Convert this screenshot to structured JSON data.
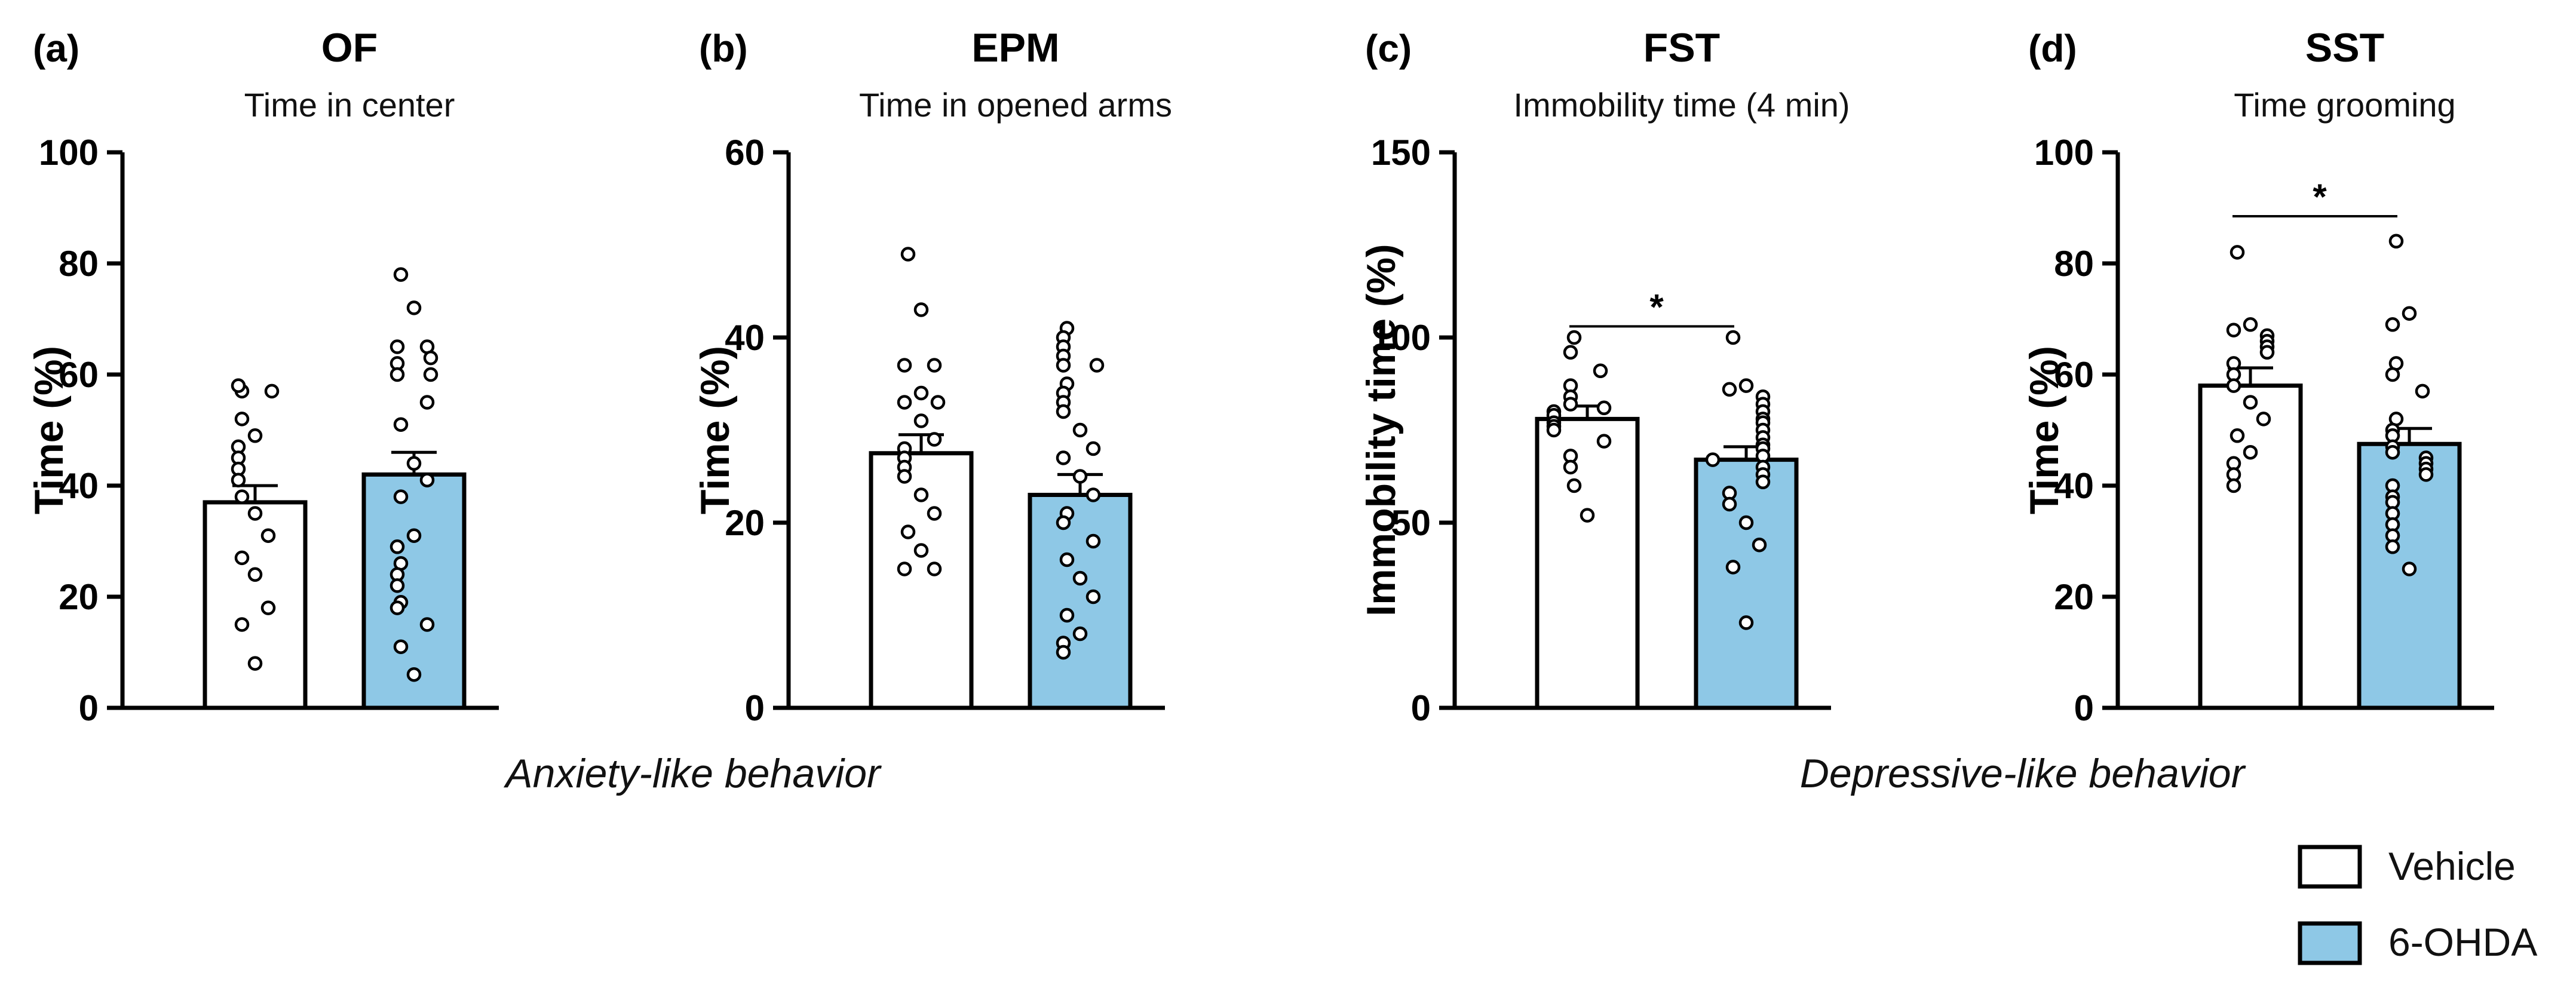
{
  "figure": {
    "group_labels": [
      {
        "text": "Anxiety-like behavior",
        "panels": [
          0,
          1
        ]
      },
      {
        "text": "Depressive-like behavior",
        "panels": [
          2,
          3
        ]
      }
    ],
    "legend": [
      {
        "label": "Vehicle",
        "color": "#ffffff"
      },
      {
        "label": "6-OHDA",
        "color": "#8ec8e6"
      }
    ],
    "colors": {
      "vehicle": "#ffffff",
      "ohda": "#8ec8e6",
      "stroke": "#000000"
    }
  },
  "chart_data": [
    {
      "type": "bar",
      "panel": "(a)",
      "title": "OF",
      "subtitle": "Time in center",
      "ylabel": "Time (%)",
      "ylim": [
        0,
        100
      ],
      "yticks": [
        0,
        20,
        40,
        60,
        80,
        100
      ],
      "categories": [
        "Vehicle",
        "6-OHDA"
      ],
      "values": [
        37,
        42
      ],
      "sem": [
        3,
        4
      ],
      "points": [
        [
          57,
          58,
          57,
          52,
          49,
          47,
          45,
          43,
          41,
          38,
          35,
          31,
          27,
          24,
          18,
          15,
          8
        ],
        [
          78,
          72,
          65,
          65,
          63,
          62,
          60,
          60,
          55,
          51,
          44,
          41,
          38,
          31,
          29,
          26,
          24,
          22,
          19,
          18,
          15,
          11,
          6
        ]
      ],
      "significance": null
    },
    {
      "type": "bar",
      "panel": "(b)",
      "title": "EPM",
      "subtitle": "Time in opened arms",
      "ylabel": "Time (%)",
      "ylim": [
        0,
        60
      ],
      "yticks": [
        0,
        20,
        40,
        60
      ],
      "categories": [
        "Vehicle",
        "6-OHDA"
      ],
      "values": [
        27.5,
        23
      ],
      "sem": [
        2,
        2.2
      ],
      "points": [
        [
          49,
          43,
          37,
          37,
          34,
          33,
          33,
          31,
          29,
          28,
          27,
          26,
          25,
          23,
          21,
          19,
          17,
          15,
          15
        ],
        [
          41,
          40,
          39,
          38,
          37,
          37,
          35,
          34,
          33,
          32,
          30,
          28,
          27,
          25,
          23,
          21,
          20,
          18,
          16,
          14,
          12,
          10,
          8,
          7,
          6
        ]
      ],
      "significance": null
    },
    {
      "type": "bar",
      "panel": "(c)",
      "title": "FST",
      "subtitle": "Immobility time (4 min)",
      "ylabel": "Immobility time (%)",
      "ylim": [
        0,
        150
      ],
      "yticks": [
        0,
        50,
        100,
        150
      ],
      "categories": [
        "Vehicle",
        "6-OHDA"
      ],
      "values": [
        78,
        67
      ],
      "sem": [
        3.5,
        3.5
      ],
      "points": [
        [
          100,
          96,
          91,
          87,
          84,
          82,
          81,
          80,
          79,
          77,
          76,
          75,
          72,
          68,
          65,
          60,
          52
        ],
        [
          100,
          87,
          86,
          84,
          82,
          80,
          78,
          77,
          75,
          73,
          71,
          70,
          68,
          67,
          65,
          63,
          61,
          58,
          55,
          50,
          44,
          38,
          23
        ]
      ],
      "significance": "*"
    },
    {
      "type": "bar",
      "panel": "(d)",
      "title": "SST",
      "subtitle": "Time grooming",
      "ylabel": "Time (%)",
      "ylim": [
        0,
        100
      ],
      "yticks": [
        0,
        20,
        40,
        60,
        80,
        100
      ],
      "categories": [
        "Vehicle",
        "6-OHDA"
      ],
      "values": [
        58,
        47.5
      ],
      "sem": [
        3.2,
        2.8
      ],
      "points": [
        [
          82,
          69,
          68,
          67,
          66,
          65,
          64,
          62,
          60,
          58,
          55,
          52,
          49,
          46,
          44,
          42,
          40
        ],
        [
          84,
          71,
          69,
          62,
          60,
          57,
          52,
          50,
          49,
          47,
          46,
          45,
          44,
          43,
          42,
          40,
          38,
          37,
          35,
          33,
          31,
          29,
          25
        ]
      ],
      "significance": "*"
    }
  ]
}
